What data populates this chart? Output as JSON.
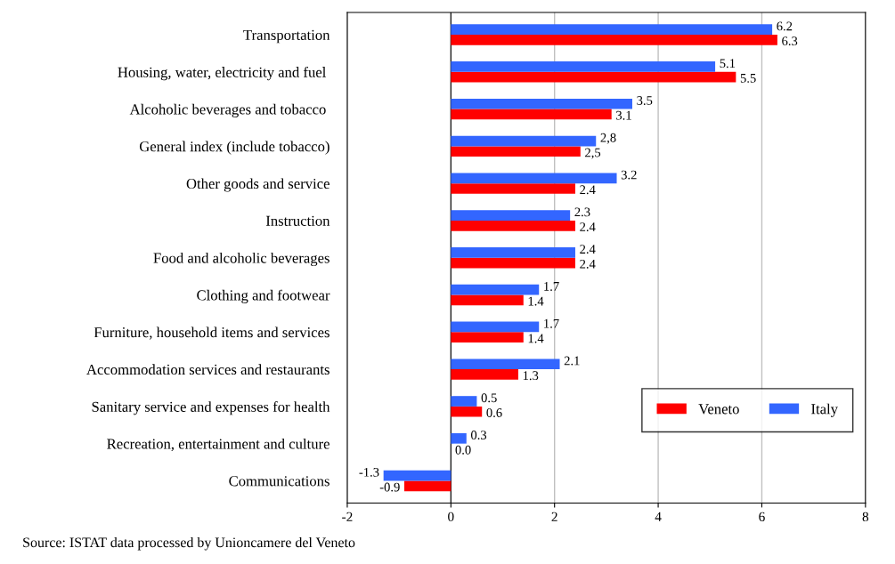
{
  "chart_data": {
    "type": "bar",
    "orientation": "horizontal",
    "categories": [
      "Transportation",
      "Housing, water, electricity and fuel ",
      "Alcoholic beverages and tobacco ",
      "General index (include tobacco)",
      "Other goods and service",
      "Instruction",
      "Food and alcoholic beverages",
      "Clothing and footwear",
      "Furniture, household items and services",
      "Accommodation services and restaurants",
      "Sanitary service and expenses for health",
      "Recreation, entertainment and culture",
      "Communications"
    ],
    "series": [
      {
        "name": "Veneto",
        "color": "#ff0000",
        "values": [
          6.3,
          5.5,
          3.1,
          2.5,
          2.4,
          2.4,
          2.4,
          1.4,
          1.4,
          1.3,
          0.6,
          0.0,
          -0.9
        ],
        "value_labels": [
          "6.3",
          "5.5",
          "3.1",
          "2,5",
          "2.4",
          "2.4",
          "2.4",
          "1.4",
          "1.4",
          "1.3",
          "0.6",
          "0.0",
          "-0.9"
        ]
      },
      {
        "name": "Italy",
        "color": "#3366ff",
        "values": [
          6.2,
          5.1,
          3.5,
          2.8,
          3.2,
          2.3,
          2.4,
          1.7,
          1.7,
          2.1,
          0.5,
          0.3,
          -1.3
        ],
        "value_labels": [
          "6.2",
          "5.1",
          "3.5",
          "2,8",
          "3.2",
          "2.3",
          "2.4",
          "1.7",
          "1.7",
          "2.1",
          "0.5",
          "0.3",
          "-1.3"
        ]
      }
    ],
    "xlim": [
      -2,
      8
    ],
    "xticks": [
      -2,
      0,
      2,
      4,
      6,
      8
    ],
    "grid": "x",
    "legend": "bottom right",
    "annotations": [
      "Source: ISTAT data processed by Unioncamere del Veneto"
    ]
  }
}
